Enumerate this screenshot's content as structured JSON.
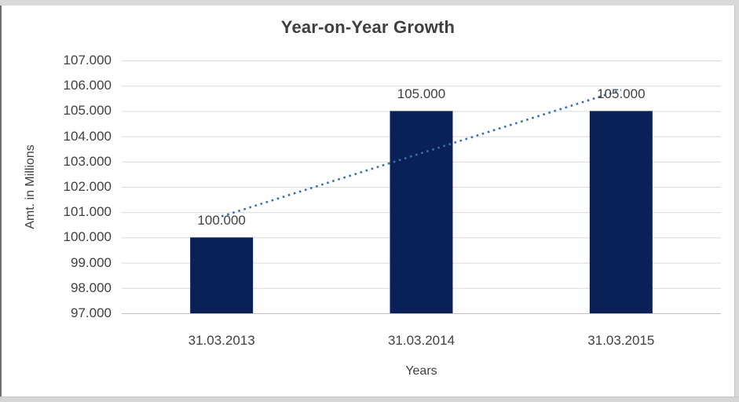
{
  "chart_data": {
    "type": "bar",
    "title": "Year-on-Year Growth",
    "categories": [
      "31.03.2013",
      "31.03.2014",
      "31.03.2015"
    ],
    "values": [
      100000,
      105000,
      105000
    ],
    "data_labels": [
      "100.000",
      "105.000",
      "105.000"
    ],
    "xlabel": "Years",
    "ylabel": "Amt. in Millions",
    "ylim": [
      97000,
      107000
    ],
    "ytick_step": 1000,
    "ytick_labels": [
      "97.000",
      "98.000",
      "99.000",
      "100.000",
      "101.000",
      "102.000",
      "103.000",
      "104.000",
      "105.000",
      "106.000",
      "107.000"
    ],
    "grid": true,
    "legend": "none",
    "colors": {
      "bar": "#0a2158",
      "trendline": "#3c6cb0",
      "gridline": "#d9d9d9",
      "axis_line": "#bfbfbf",
      "text": "#404040",
      "chrome": "#d9d9d9"
    },
    "trendline": {
      "type": "linear",
      "style": "dotted",
      "fit_values": [
        100833,
        103333,
        105833
      ]
    }
  }
}
